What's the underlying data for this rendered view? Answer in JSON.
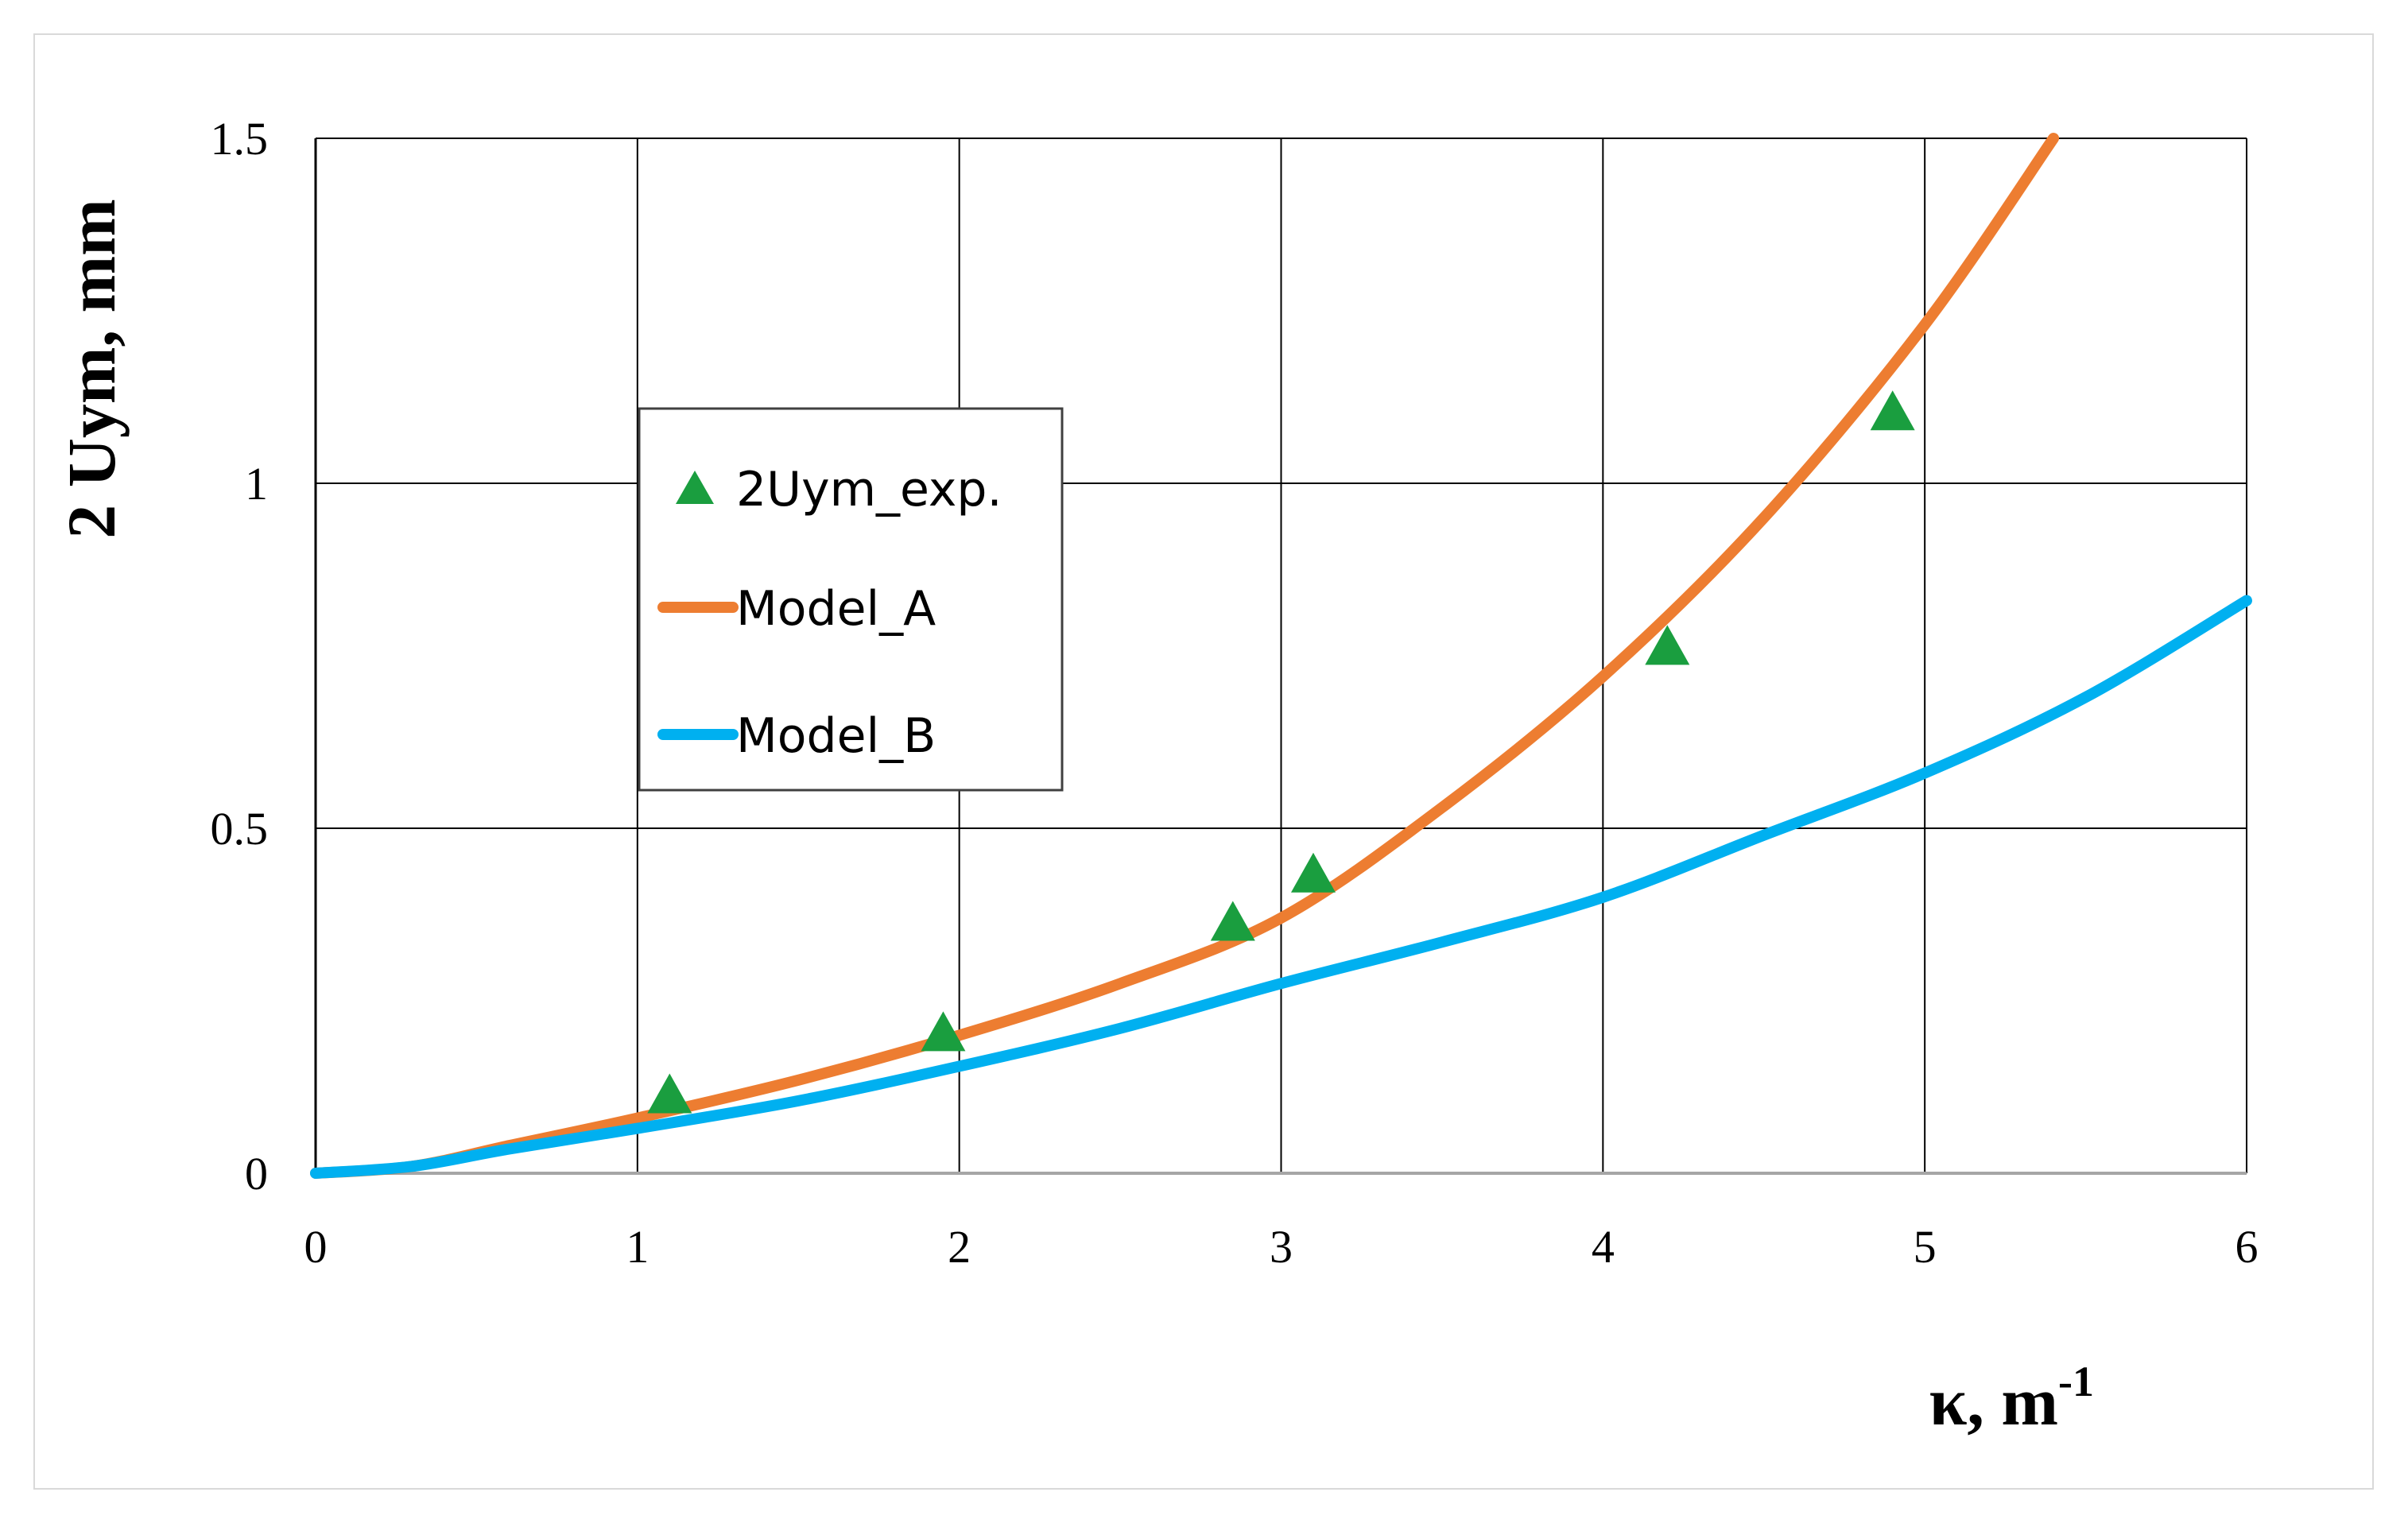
{
  "chart_data": {
    "type": "line",
    "title": "",
    "xlabel": "κ, m",
    "xlabel_superscript": "-1",
    "ylabel": "2 Uym, mm",
    "xlim": [
      0,
      6
    ],
    "ylim": [
      0,
      1.5
    ],
    "x_ticks": [
      "0",
      "1",
      "2",
      "3",
      "4",
      "5",
      "6"
    ],
    "y_ticks": [
      "0",
      "0.5",
      "1",
      "1.5"
    ],
    "x_tick_values": [
      0,
      1,
      2,
      3,
      4,
      5,
      6
    ],
    "y_tick_values": [
      0,
      0.5,
      1,
      1.5
    ],
    "grid": true,
    "legend_position": "upper-left",
    "series": [
      {
        "name": "2Uym_exp.",
        "kind": "scatter",
        "marker": "triangle",
        "color": "#1a9e3f",
        "x": [
          1.1,
          1.95,
          2.85,
          3.1,
          4.2,
          4.9
        ],
        "y": [
          0.11,
          0.2,
          0.36,
          0.43,
          0.76,
          1.1
        ]
      },
      {
        "name": "Model_A",
        "kind": "line",
        "color": "#ed7d31",
        "x": [
          0,
          0.3,
          0.6,
          1.0,
          1.5,
          2.0,
          2.5,
          3.0,
          3.5,
          4.0,
          4.5,
          5.0,
          5.4
        ],
        "y": [
          0,
          0.01,
          0.04,
          0.08,
          0.135,
          0.2,
          0.275,
          0.37,
          0.53,
          0.72,
          0.95,
          1.23,
          1.5
        ]
      },
      {
        "name": "Model_B",
        "kind": "line",
        "color": "#00b0f0",
        "x": [
          0,
          0.3,
          0.6,
          1.0,
          1.5,
          2.0,
          2.5,
          3.0,
          3.5,
          4.0,
          4.5,
          5.0,
          5.5,
          6.0
        ],
        "y": [
          0,
          0.01,
          0.035,
          0.065,
          0.105,
          0.155,
          0.21,
          0.275,
          0.335,
          0.4,
          0.49,
          0.58,
          0.69,
          0.83
        ]
      }
    ]
  }
}
